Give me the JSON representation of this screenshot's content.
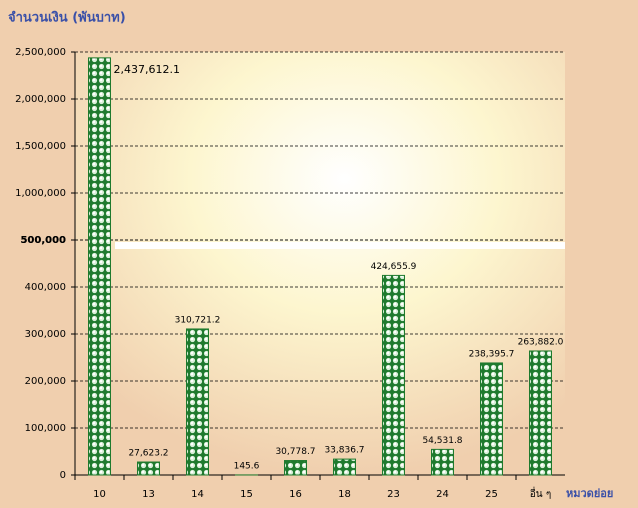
{
  "chart_data": {
    "type": "bar",
    "y_axis_label": "จำนวนเงิน (พันบาท)",
    "x_axis_label": "หมวดย่อย",
    "categories": [
      "10",
      "13",
      "14",
      "15",
      "16",
      "18",
      "23",
      "24",
      "25",
      "อื่น ๆ"
    ],
    "values": [
      2437612.1,
      27623.2,
      310721.2,
      145.6,
      30778.7,
      33836.7,
      424655.9,
      54531.8,
      238395.7,
      263882.0
    ],
    "value_labels": [
      "2,437,612.1",
      "27,623.2",
      "310,721.2",
      "145.6",
      "30,778.7",
      "33,836.7",
      "424,655.9",
      "54,531.8",
      "238,395.7",
      "263,882.0"
    ],
    "color": "#1f7a2e",
    "ylim": [
      0,
      500000
    ],
    "yticks": [
      0,
      {
        "value": 100000,
        "label": "100,000"
      },
      {
        "value": 200000,
        "label": "200,000"
      },
      {
        "value": 300000,
        "label": "300,000"
      },
      {
        "value": 400000,
        "label": "400,000"
      },
      {
        "value": 500000,
        "label": "500,000"
      }
    ],
    "y_upper_lim": [
      500000,
      2500000
    ],
    "y_upper_ticks": [
      {
        "value": 500000,
        "label": "500,000"
      },
      {
        "value": 1000000,
        "label": "1,000,000"
      },
      {
        "value": 1500000,
        "label": "1,500,000"
      },
      {
        "value": 2000000,
        "label": "2,000,000"
      },
      {
        "value": 2500000,
        "label": "2,500,000"
      }
    ],
    "grid": true
  }
}
